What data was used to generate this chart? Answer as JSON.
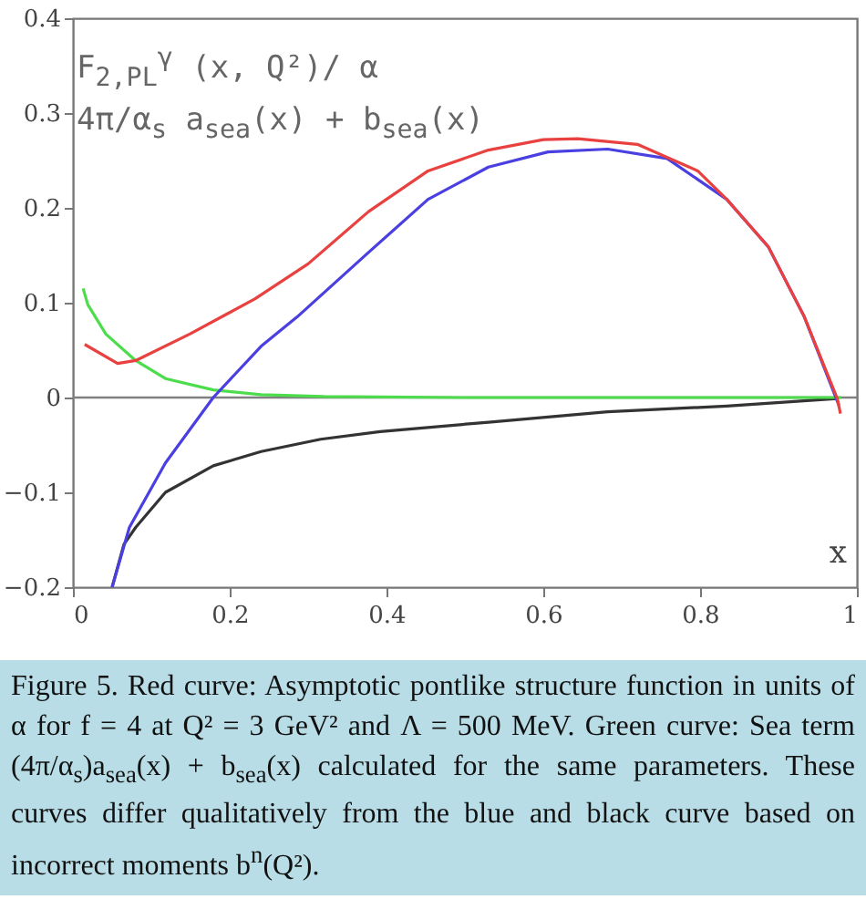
{
  "chart_data": {
    "type": "line",
    "xlabel": "x",
    "xlim": [
      0,
      1
    ],
    "ylim": [
      -0.2,
      0.4
    ],
    "xticks": [
      0,
      0.2,
      0.4,
      0.6,
      0.8,
      1
    ],
    "yticks": [
      -0.2,
      -0.1,
      0,
      0.1,
      0.2,
      0.3,
      0.4
    ],
    "grid": false,
    "marker": "none",
    "line_style": "solid",
    "ref_lines": [
      {
        "axis": "y",
        "value": 0,
        "color": "#808080"
      }
    ],
    "series": [
      {
        "color": "#333333",
        "x": [
          0.05,
          0.065,
          0.08,
          0.118,
          0.179,
          0.24,
          0.316,
          0.392,
          0.53,
          0.682,
          0.834,
          0.975
        ],
        "values": [
          -0.2,
          -0.155,
          -0.137,
          -0.1,
          -0.072,
          -0.057,
          -0.044,
          -0.036,
          -0.026,
          -0.015,
          -0.009,
          -0.001
        ]
      },
      {
        "color": "#4cdc4c",
        "x": [
          0.013,
          0.019,
          0.042,
          0.08,
          0.118,
          0.179,
          0.24,
          0.32,
          0.5,
          0.7,
          0.9,
          0.98
        ],
        "values": [
          0.115,
          0.098,
          0.067,
          0.039,
          0.02,
          0.008,
          0.003,
          0.001,
          0,
          0,
          0,
          0
        ]
      },
      {
        "color": "#4a3fe0",
        "x": [
          0.05,
          0.072,
          0.118,
          0.179,
          0.24,
          0.286,
          0.377,
          0.453,
          0.53,
          0.606,
          0.682,
          0.758,
          0.834,
          0.887,
          0.933,
          0.977
        ],
        "values": [
          -0.2,
          -0.137,
          -0.069,
          0,
          0.054,
          0.085,
          0.153,
          0.209,
          0.243,
          0.259,
          0.262,
          0.252,
          0.209,
          0.159,
          0.085,
          -0.008
        ]
      },
      {
        "color": "#e8413f",
        "x": [
          0.015,
          0.057,
          0.08,
          0.149,
          0.194,
          0.232,
          0.3,
          0.377,
          0.453,
          0.53,
          0.6,
          0.644,
          0.72,
          0.797,
          0.834,
          0.887,
          0.933,
          0.975,
          0.979
        ],
        "values": [
          0.056,
          0.036,
          0.039,
          0.067,
          0.087,
          0.104,
          0.141,
          0.196,
          0.239,
          0.261,
          0.272,
          0.273,
          0.267,
          0.239,
          0.209,
          0.159,
          0.085,
          -0.001,
          -0.017
        ]
      }
    ],
    "annotations": [
      "F$_{2,PL}$$^{γ}$ (x, Q²)/ α",
      "4π/α$_{s}$ a$_{sea}$(x) + b$_{sea}$(x)",
      "Figure 5. Red curve: Asymptotic pontlike structure function in units of α for f = 4 at Q² = 3 GeV² and Λ = 500 MeV. Green curve: Sea term (4π/α$_{s}$)a$_{sea}$(x) + b$_{sea}$(x) calculated for the same parameters. These curves differ qualitatively from the blue and black curve based on incorrect moments b$^{n}$(Q²)."
    ]
  }
}
